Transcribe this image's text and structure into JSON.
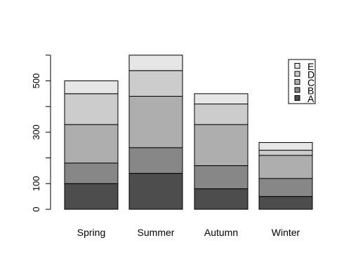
{
  "chart_data": {
    "type": "bar",
    "stacked": true,
    "categories": [
      "Spring",
      "Summer",
      "Autumn",
      "Winter"
    ],
    "series": [
      {
        "name": "A",
        "color": "#4d4d4d",
        "values": [
          100,
          140,
          80,
          50
        ]
      },
      {
        "name": "B",
        "color": "#878787",
        "values": [
          80,
          100,
          90,
          70
        ]
      },
      {
        "name": "C",
        "color": "#aeaeae",
        "values": [
          150,
          200,
          160,
          90
        ]
      },
      {
        "name": "D",
        "color": "#cccccc",
        "values": [
          120,
          100,
          80,
          20
        ]
      },
      {
        "name": "E",
        "color": "#e6e6e6",
        "values": [
          50,
          60,
          40,
          30
        ]
      }
    ],
    "yticks": [
      0,
      100,
      300,
      500
    ],
    "ylim": [
      0,
      600
    ],
    "legend_position": "top-right",
    "grid": false,
    "title": "",
    "xlabel": "",
    "ylabel": ""
  }
}
